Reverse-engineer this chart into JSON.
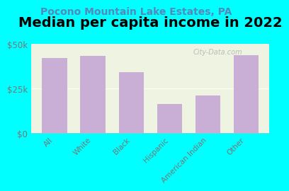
{
  "title": "Median per capita income in 2022",
  "subtitle": "Pocono Mountain Lake Estates, PA",
  "categories": [
    "All",
    "White",
    "Black",
    "Hispanic",
    "American Indian",
    "Other"
  ],
  "values": [
    42000,
    43000,
    34000,
    16000,
    21000,
    43500
  ],
  "bar_color": "#c9aed6",
  "background_outer": "#00FFFF",
  "background_inner": "#eef3e2",
  "ylim": [
    0,
    50000
  ],
  "ytick_labels": [
    "$0",
    "$25k",
    "$50k"
  ],
  "ytick_values": [
    0,
    25000,
    50000
  ],
  "title_fontsize": 14,
  "subtitle_fontsize": 10,
  "tick_label_color": "#777777",
  "subtitle_color": "#5588bb",
  "watermark": "City-Data.com"
}
